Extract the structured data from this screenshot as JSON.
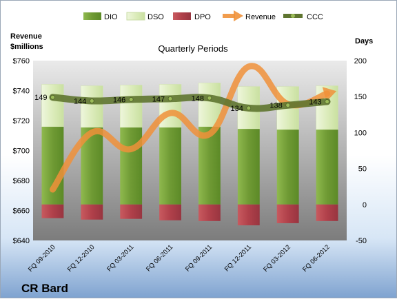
{
  "chart_data": {
    "type": "bar",
    "title": "Quarterly Periods",
    "company": "CR Bard",
    "left_axis_label": [
      "Revenue",
      "$millions"
    ],
    "right_axis_label": "Days",
    "left_ylim": [
      640,
      760
    ],
    "left_ticks": [
      "$640",
      "$660",
      "$680",
      "$700",
      "$720",
      "$740",
      "$760"
    ],
    "right_ylim": [
      -50,
      200
    ],
    "right_ticks": [
      "-50",
      "0",
      "50",
      "100",
      "150",
      "200"
    ],
    "categories": [
      "FQ 09-2010",
      "FQ 12-2010",
      "FQ 03-2011",
      "FQ 06-2011",
      "FQ 09-2011",
      "FQ 12-2011",
      "FQ 03-2012",
      "FQ 06-2012"
    ],
    "legend": [
      "DIO",
      "DSO",
      "DPO",
      "Revenue",
      "CCC"
    ],
    "series": [
      {
        "name": "DIO",
        "axis": "right",
        "values": [
          108,
          107,
          107,
          107,
          108,
          105,
          104,
          104
        ],
        "color": "#77a33b"
      },
      {
        "name": "DSO",
        "axis": "right",
        "values": [
          59,
          58,
          59,
          60,
          61,
          59,
          60,
          61
        ],
        "color": "#dfeec0"
      },
      {
        "name": "DPO",
        "axis": "right",
        "values": [
          -19,
          -21,
          -20,
          -22,
          -23,
          -29,
          -26,
          -23
        ],
        "color": "#b8464e"
      },
      {
        "name": "Revenue",
        "axis": "left",
        "values": [
          674,
          712,
          701,
          725,
          711,
          756,
          731,
          738
        ],
        "color": "#f0913a"
      },
      {
        "name": "CCC",
        "axis": "right",
        "values": [
          149,
          144,
          146,
          147,
          148,
          134,
          138,
          143
        ],
        "labels": [
          "149",
          "144",
          "146",
          "147",
          "148",
          "134",
          "138",
          "143"
        ],
        "color": "#5f7530"
      }
    ],
    "grid": false,
    "legend_position": "top"
  }
}
